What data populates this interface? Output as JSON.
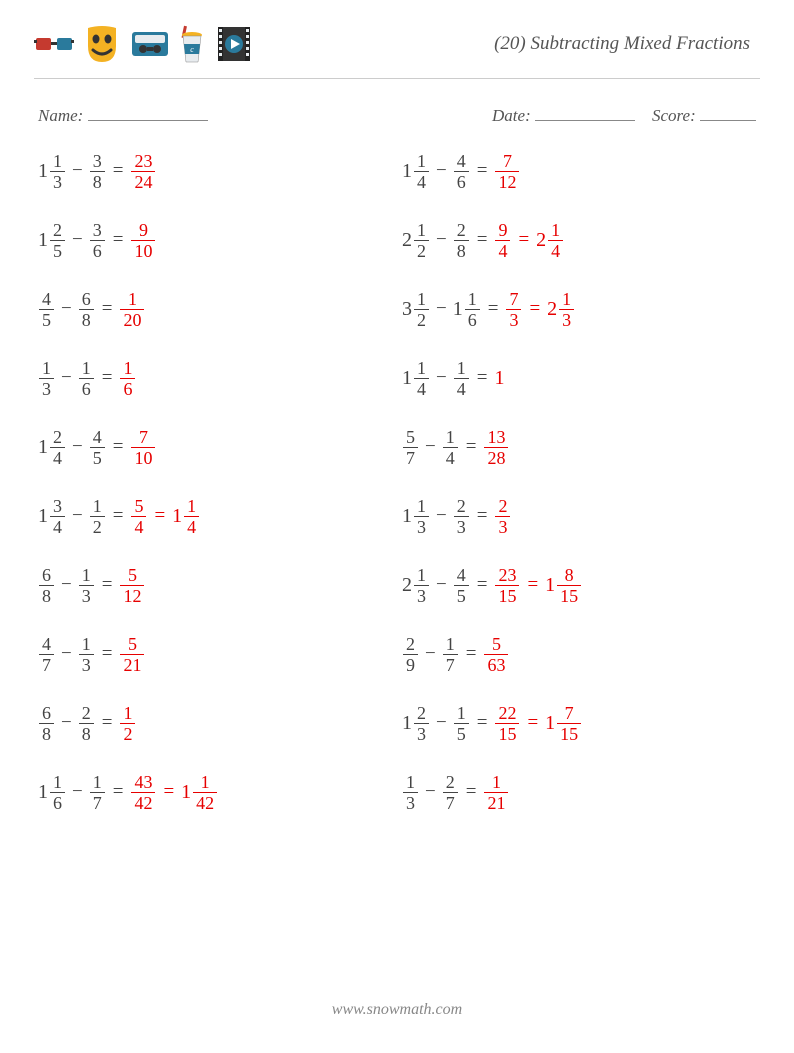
{
  "title": "(20) Subtracting Mixed Fractions",
  "labels": {
    "name": "Name:",
    "date": "Date:",
    "score": "Score:"
  },
  "blank_widths": {
    "name": 120,
    "date": 100,
    "score": 56
  },
  "text_color": "#444444",
  "answer_color": "#e60000",
  "font_family": "Georgia, 'Times New Roman', serif",
  "footer": "www.snowmath.com",
  "icons": [
    {
      "name": "3d-glasses",
      "primary": "#c53a2f",
      "secondary": "#2a7a9c"
    },
    {
      "name": "theater-mask",
      "primary": "#f4b223",
      "secondary": "#333333"
    },
    {
      "name": "vhs-tape",
      "primary": "#2a7a9c",
      "secondary": "#333333"
    },
    {
      "name": "soft-drink",
      "primary": "#c53a2f",
      "secondary": "#f4b223",
      "tertiary": "#2a7a9c"
    },
    {
      "name": "film-reel",
      "primary": "#333333",
      "secondary": "#2a7a9c"
    }
  ],
  "problems": {
    "left": [
      {
        "a": {
          "w": 1,
          "n": 1,
          "d": 3
        },
        "b": {
          "n": 3,
          "d": 8
        },
        "ans": [
          {
            "n": 23,
            "d": 24
          }
        ]
      },
      {
        "a": {
          "w": 1,
          "n": 2,
          "d": 5
        },
        "b": {
          "n": 3,
          "d": 6
        },
        "ans": [
          {
            "n": 9,
            "d": 10
          }
        ]
      },
      {
        "a": {
          "n": 4,
          "d": 5
        },
        "b": {
          "n": 6,
          "d": 8
        },
        "ans": [
          {
            "n": 1,
            "d": 20
          }
        ]
      },
      {
        "a": {
          "n": 1,
          "d": 3
        },
        "b": {
          "n": 1,
          "d": 6
        },
        "ans": [
          {
            "n": 1,
            "d": 6
          }
        ]
      },
      {
        "a": {
          "w": 1,
          "n": 2,
          "d": 4
        },
        "b": {
          "n": 4,
          "d": 5
        },
        "ans": [
          {
            "n": 7,
            "d": 10
          }
        ]
      },
      {
        "a": {
          "w": 1,
          "n": 3,
          "d": 4
        },
        "b": {
          "n": 1,
          "d": 2
        },
        "ans": [
          {
            "n": 5,
            "d": 4
          },
          {
            "w": 1,
            "n": 1,
            "d": 4
          }
        ]
      },
      {
        "a": {
          "n": 6,
          "d": 8
        },
        "b": {
          "n": 1,
          "d": 3
        },
        "ans": [
          {
            "n": 5,
            "d": 12
          }
        ]
      },
      {
        "a": {
          "n": 4,
          "d": 7
        },
        "b": {
          "n": 1,
          "d": 3
        },
        "ans": [
          {
            "n": 5,
            "d": 21
          }
        ]
      },
      {
        "a": {
          "n": 6,
          "d": 8
        },
        "b": {
          "n": 2,
          "d": 8
        },
        "ans": [
          {
            "n": 1,
            "d": 2
          }
        ]
      },
      {
        "a": {
          "w": 1,
          "n": 1,
          "d": 6
        },
        "b": {
          "n": 1,
          "d": 7
        },
        "ans": [
          {
            "n": 43,
            "d": 42
          },
          {
            "w": 1,
            "n": 1,
            "d": 42
          }
        ]
      }
    ],
    "right": [
      {
        "a": {
          "w": 1,
          "n": 1,
          "d": 4
        },
        "b": {
          "n": 4,
          "d": 6
        },
        "ans": [
          {
            "n": 7,
            "d": 12
          }
        ]
      },
      {
        "a": {
          "w": 2,
          "n": 1,
          "d": 2
        },
        "b": {
          "n": 2,
          "d": 8
        },
        "ans": [
          {
            "n": 9,
            "d": 4
          },
          {
            "w": 2,
            "n": 1,
            "d": 4
          }
        ]
      },
      {
        "a": {
          "w": 3,
          "n": 1,
          "d": 2
        },
        "b": {
          "w": 1,
          "n": 1,
          "d": 6
        },
        "ans": [
          {
            "n": 7,
            "d": 3
          },
          {
            "w": 2,
            "n": 1,
            "d": 3
          }
        ]
      },
      {
        "a": {
          "w": 1,
          "n": 1,
          "d": 4
        },
        "b": {
          "n": 1,
          "d": 4
        },
        "ans": [
          {
            "int": 1
          }
        ]
      },
      {
        "a": {
          "n": 5,
          "d": 7
        },
        "b": {
          "n": 1,
          "d": 4
        },
        "ans": [
          {
            "n": 13,
            "d": 28
          }
        ]
      },
      {
        "a": {
          "w": 1,
          "n": 1,
          "d": 3
        },
        "b": {
          "n": 2,
          "d": 3
        },
        "ans": [
          {
            "n": 2,
            "d": 3
          }
        ]
      },
      {
        "a": {
          "w": 2,
          "n": 1,
          "d": 3
        },
        "b": {
          "n": 4,
          "d": 5
        },
        "ans": [
          {
            "n": 23,
            "d": 15
          },
          {
            "w": 1,
            "n": 8,
            "d": 15
          }
        ]
      },
      {
        "a": {
          "n": 2,
          "d": 9
        },
        "b": {
          "n": 1,
          "d": 7
        },
        "ans": [
          {
            "n": 5,
            "d": 63
          }
        ]
      },
      {
        "a": {
          "w": 1,
          "n": 2,
          "d": 3
        },
        "b": {
          "n": 1,
          "d": 5
        },
        "ans": [
          {
            "n": 22,
            "d": 15
          },
          {
            "w": 1,
            "n": 7,
            "d": 15
          }
        ]
      },
      {
        "a": {
          "n": 1,
          "d": 3
        },
        "b": {
          "n": 2,
          "d": 7
        },
        "ans": [
          {
            "n": 1,
            "d": 21
          }
        ]
      }
    ]
  }
}
